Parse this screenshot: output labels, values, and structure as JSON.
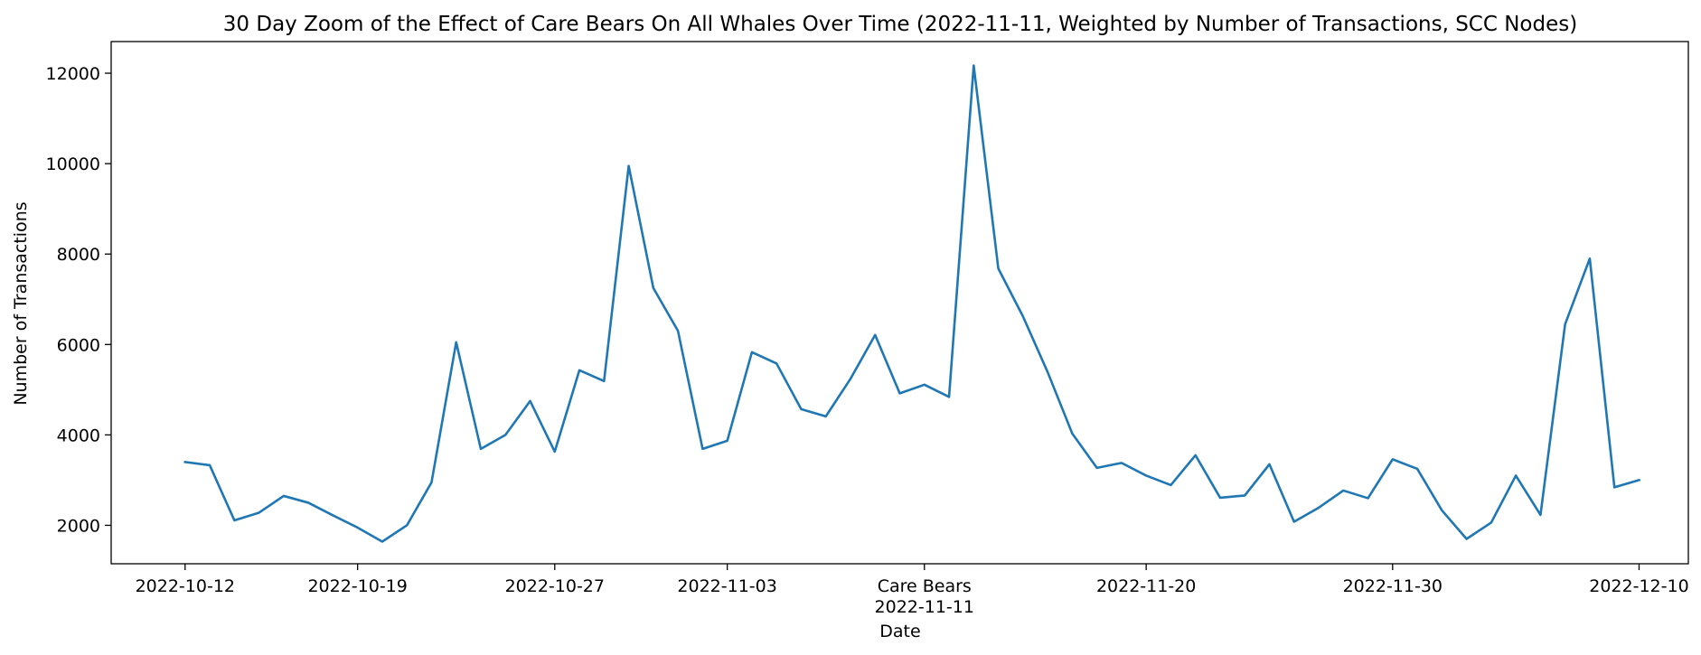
{
  "chart_data": {
    "type": "line",
    "title": "30 Day Zoom of the Effect of Care Bears On All Whales Over Time (2022-11-11, Weighted by Number of Transactions, SCC Nodes)",
    "xlabel": "Date",
    "ylabel": "Number of Transactions",
    "ylim": [
      1150,
      12700
    ],
    "xlim": [
      "2022-10-09",
      "2022-12-12"
    ],
    "grid": false,
    "legend": "none",
    "series_color": "#1f77b4",
    "yticks": [
      2000,
      4000,
      6000,
      8000,
      10000,
      12000
    ],
    "yticklabels": [
      "2000",
      "4000",
      "6000",
      "8000",
      "10000",
      "12000"
    ],
    "xticks": [
      {
        "date": "2022-10-12",
        "label": "2022-10-12"
      },
      {
        "date": "2022-10-19",
        "label": "2022-10-19"
      },
      {
        "date": "2022-10-27",
        "label": "2022-10-27"
      },
      {
        "date": "2022-11-03",
        "label": "2022-11-03"
      },
      {
        "date": "2022-11-11",
        "label": "Care Bears",
        "sublabel": "2022-11-11"
      },
      {
        "date": "2022-11-20",
        "label": "2022-11-20"
      },
      {
        "date": "2022-11-30",
        "label": "2022-11-30"
      },
      {
        "date": "2022-12-10",
        "label": "2022-12-10"
      }
    ],
    "series": [
      {
        "x": [
          "2022-10-12",
          "2022-10-13",
          "2022-10-14",
          "2022-10-15",
          "2022-10-16",
          "2022-10-17",
          "2022-10-18",
          "2022-10-19",
          "2022-10-20",
          "2022-10-21",
          "2022-10-22",
          "2022-10-23",
          "2022-10-24",
          "2022-10-25",
          "2022-10-26",
          "2022-10-27",
          "2022-10-28",
          "2022-10-29",
          "2022-10-30",
          "2022-10-31",
          "2022-11-01",
          "2022-11-02",
          "2022-11-03",
          "2022-11-04",
          "2022-11-05",
          "2022-11-06",
          "2022-11-07",
          "2022-11-08",
          "2022-11-09",
          "2022-11-10",
          "2022-11-11",
          "2022-11-12",
          "2022-11-13",
          "2022-11-14",
          "2022-11-15",
          "2022-11-16",
          "2022-11-17",
          "2022-11-18",
          "2022-11-19",
          "2022-11-20",
          "2022-11-21",
          "2022-11-22",
          "2022-11-23",
          "2022-11-24",
          "2022-11-25",
          "2022-11-26",
          "2022-11-27",
          "2022-11-28",
          "2022-11-29",
          "2022-11-30",
          "2022-12-01",
          "2022-12-02",
          "2022-12-03",
          "2022-12-04",
          "2022-12-05",
          "2022-12-06",
          "2022-12-07",
          "2022-12-08",
          "2022-12-09",
          "2022-12-10"
        ],
        "y": [
          3400,
          3330,
          2110,
          2280,
          2650,
          2500,
          2220,
          1950,
          1640,
          2000,
          2950,
          6050,
          3690,
          4000,
          4750,
          3630,
          5430,
          5190,
          9950,
          7250,
          6300,
          3690,
          3870,
          5830,
          5580,
          4570,
          4410,
          5240,
          6210,
          4920,
          5110,
          4840,
          12170,
          7680,
          6620,
          5390,
          4030,
          3270,
          3380,
          3100,
          2890,
          3550,
          2610,
          2660,
          3350,
          2080,
          2390,
          2770,
          2600,
          3460,
          3250,
          2330,
          1700,
          2060,
          3100,
          2230,
          6450,
          7900,
          2840,
          3000
        ]
      }
    ]
  }
}
